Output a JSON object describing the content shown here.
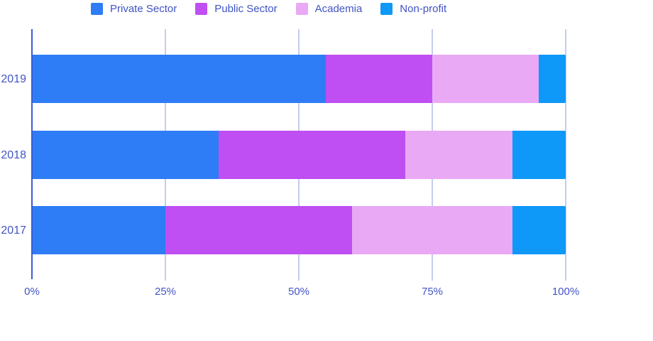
{
  "colors": {
    "background": "#ffffff",
    "gridline": "#c4cdf0",
    "baseline": "#3d5bd4",
    "axis_text": "#4254c4",
    "legend_text": "#3f53c3"
  },
  "chart_data": {
    "type": "bar",
    "orientation": "horizontal",
    "stacked": true,
    "title": "",
    "xlabel": "",
    "ylabel": "",
    "legend_position": "top",
    "grid": true,
    "categories": [
      "2019",
      "2018",
      "2017"
    ],
    "series": [
      {
        "name": "Private Sector",
        "color": "#2e7df6",
        "values": [
          55,
          35,
          25
        ]
      },
      {
        "name": "Public Sector",
        "color": "#bf4ff2",
        "values": [
          20,
          35,
          35
        ]
      },
      {
        "name": "Academia",
        "color": "#e9a9f4",
        "values": [
          20,
          20,
          30
        ]
      },
      {
        "name": "Non-profit",
        "color": "#0e98f8",
        "values": [
          5,
          10,
          10
        ]
      }
    ],
    "x_axis": {
      "range": [
        0,
        100
      ],
      "unit": "%",
      "tick_labels": [
        "0%",
        "25%",
        "50%",
        "75%",
        "100%"
      ],
      "tick_values": [
        0,
        25,
        50,
        75,
        100
      ]
    }
  }
}
